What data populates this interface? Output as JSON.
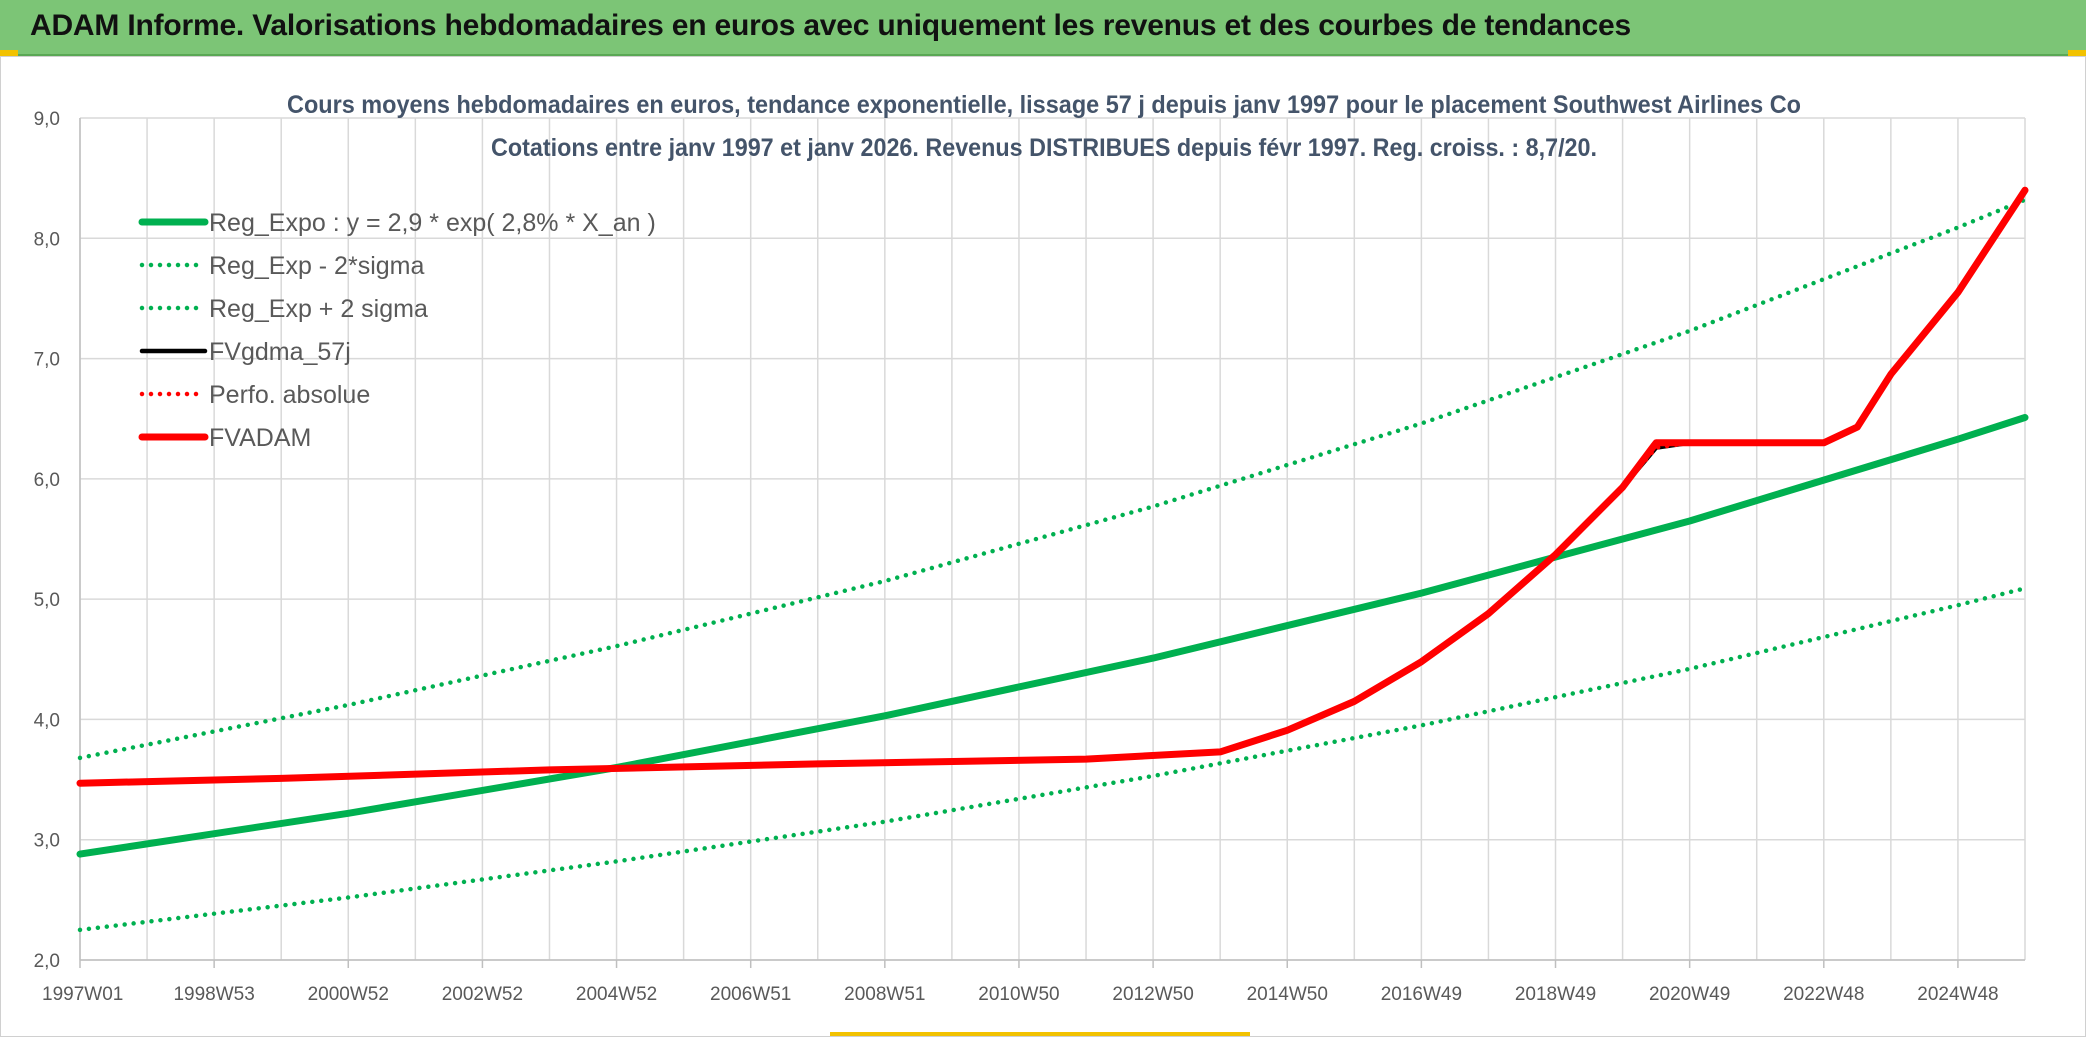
{
  "header": {
    "title": "ADAM Informe. Valorisations hebdomadaires en euros avec uniquement les revenus et des courbes de tendances"
  },
  "colors": {
    "green": "#00b050",
    "red": "#ff0000",
    "black": "#000000",
    "banner": "#7cc576",
    "grid": "#d9d9d9"
  },
  "chart_data": {
    "type": "line",
    "title": [
      "Cours moyens hebdomadaires en euros, tendance exponentielle, lissage 57 j depuis janv 1997 pour le placement Southwest Airlines Co",
      "Cotations entre janv 1997 et janv 2026. Revenus DISTRIBUES depuis févr 1997. Reg. croiss. : 8,7/20."
    ],
    "xlabel": "",
    "ylabel": "",
    "ylim": [
      2.0,
      9.0
    ],
    "yticks": [
      "2,0",
      "3,0",
      "4,0",
      "5,0",
      "6,0",
      "7,0",
      "8,0",
      "9,0"
    ],
    "xlim": [
      1997.0,
      2026.0
    ],
    "xticks": [
      {
        "label": "1997W01",
        "x": 1997.0
      },
      {
        "label": "1998W53",
        "x": 1999.0
      },
      {
        "label": "2000W52",
        "x": 2001.0
      },
      {
        "label": "2002W52",
        "x": 2003.0
      },
      {
        "label": "2004W52",
        "x": 2005.0
      },
      {
        "label": "2006W51",
        "x": 2007.0
      },
      {
        "label": "2008W51",
        "x": 2009.0
      },
      {
        "label": "2010W50",
        "x": 2011.0
      },
      {
        "label": "2012W50",
        "x": 2013.0
      },
      {
        "label": "2014W50",
        "x": 2015.0
      },
      {
        "label": "2016W49",
        "x": 2017.0
      },
      {
        "label": "2018W49",
        "x": 2019.0
      },
      {
        "label": "2020W49",
        "x": 2021.0
      },
      {
        "label": "2022W48",
        "x": 2023.0
      },
      {
        "label": "2024W48",
        "x": 2025.0
      }
    ],
    "legend_position": "top-left",
    "series": [
      {
        "name": "Reg_Expo : y = 2,9 * exp( 2,8% *  X_an )",
        "style": "solid-thick",
        "color": "#00b050",
        "x": [
          1997.0,
          2001.0,
          2005.0,
          2009.0,
          2013.0,
          2017.0,
          2021.0,
          2025.0,
          2026.0
        ],
        "y": [
          2.88,
          3.22,
          3.6,
          4.03,
          4.51,
          5.05,
          5.65,
          6.33,
          6.51
        ]
      },
      {
        "name": "Reg_Exp - 2*sigma",
        "style": "dotted",
        "color": "#00b050",
        "x": [
          1997.0,
          2001.0,
          2005.0,
          2009.0,
          2013.0,
          2017.0,
          2021.0,
          2025.0,
          2026.0
        ],
        "y": [
          2.25,
          2.52,
          2.82,
          3.15,
          3.53,
          3.95,
          4.42,
          4.95,
          5.09
        ]
      },
      {
        "name": "Reg_Exp + 2 sigma",
        "style": "dotted",
        "color": "#00b050",
        "x": [
          1997.0,
          2001.0,
          2005.0,
          2009.0,
          2013.0,
          2017.0,
          2021.0,
          2025.0,
          2026.0
        ],
        "y": [
          3.68,
          4.12,
          4.61,
          5.15,
          5.77,
          6.46,
          7.23,
          8.09,
          8.32
        ]
      },
      {
        "name": "FVgdma_57j",
        "style": "solid",
        "color": "#000000",
        "x": [
          1997.0,
          2000.0,
          2004.0,
          2008.0,
          2012.0,
          2014.0,
          2015.0,
          2016.0,
          2017.0,
          2018.0,
          2019.0,
          2020.0,
          2020.5,
          2021.0,
          2022.0,
          2023.0,
          2023.5,
          2024.0,
          2025.0,
          2026.0
        ],
        "y": [
          3.47,
          3.51,
          3.58,
          3.63,
          3.67,
          3.73,
          3.91,
          4.15,
          4.48,
          4.88,
          5.37,
          5.93,
          6.26,
          6.3,
          6.3,
          6.3,
          6.43,
          6.87,
          7.55,
          8.4
        ]
      },
      {
        "name": "Perfo. absolue",
        "style": "dotted",
        "color": "#ff0000",
        "x": [
          1997.0,
          2000.0,
          2004.0,
          2008.0,
          2012.0,
          2014.0,
          2015.0,
          2016.0,
          2017.0,
          2018.0,
          2019.0,
          2020.0,
          2020.5,
          2021.0,
          2022.0,
          2023.0,
          2023.5,
          2024.0,
          2025.0,
          2026.0
        ],
        "y": [
          3.47,
          3.51,
          3.58,
          3.63,
          3.67,
          3.73,
          3.91,
          4.15,
          4.48,
          4.88,
          5.37,
          5.93,
          6.26,
          6.3,
          6.3,
          6.3,
          6.43,
          6.87,
          7.55,
          8.4
        ]
      },
      {
        "name": "FVADAM",
        "style": "solid-thick",
        "color": "#ff0000",
        "x": [
          1997.0,
          2000.0,
          2004.0,
          2008.0,
          2012.0,
          2014.0,
          2015.0,
          2016.0,
          2017.0,
          2018.0,
          2019.0,
          2020.0,
          2020.5,
          2021.0,
          2022.0,
          2023.0,
          2023.5,
          2024.0,
          2025.0,
          2026.0
        ],
        "y": [
          3.47,
          3.51,
          3.58,
          3.63,
          3.67,
          3.73,
          3.91,
          4.15,
          4.48,
          4.88,
          5.37,
          5.93,
          6.3,
          6.3,
          6.3,
          6.3,
          6.43,
          6.87,
          7.55,
          8.4
        ]
      }
    ]
  }
}
